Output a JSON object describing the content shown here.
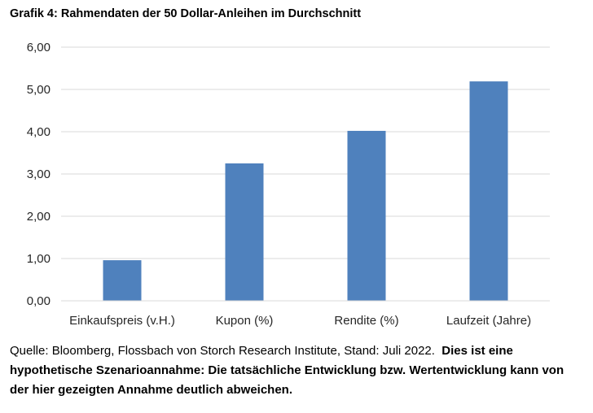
{
  "title": "Grafik 4: Rahmendaten der 50 Dollar-Anleihen im Durchschnitt",
  "chart_data": {
    "type": "bar",
    "categories": [
      "Einkaufspreis (v.H.)",
      "Kupon (%)",
      "Rendite (%)",
      "Laufzeit (Jahre)"
    ],
    "values": [
      0.96,
      3.25,
      4.02,
      5.19
    ],
    "ylim": [
      0,
      6
    ],
    "yticks": [
      0,
      1,
      2,
      3,
      4,
      5,
      6
    ],
    "ytick_labels": [
      "0,00",
      "1,00",
      "2,00",
      "3,00",
      "4,00",
      "5,00",
      "6,00"
    ],
    "grid": true,
    "xlabel": "",
    "ylabel": "",
    "bar_color": "#4F81BD",
    "grid_color": "#D9D9D9"
  },
  "footnote": {
    "source": "Quelle: Bloomberg, Flossbach von Storch Research Institute, Stand: Juli 2022.",
    "disclaimer": "Dies ist eine hypothetische Szenarioannahme: Die tatsächliche Entwicklung bzw. Wertentwicklung kann von der hier gezeigten Annahme deutlich abweichen."
  }
}
